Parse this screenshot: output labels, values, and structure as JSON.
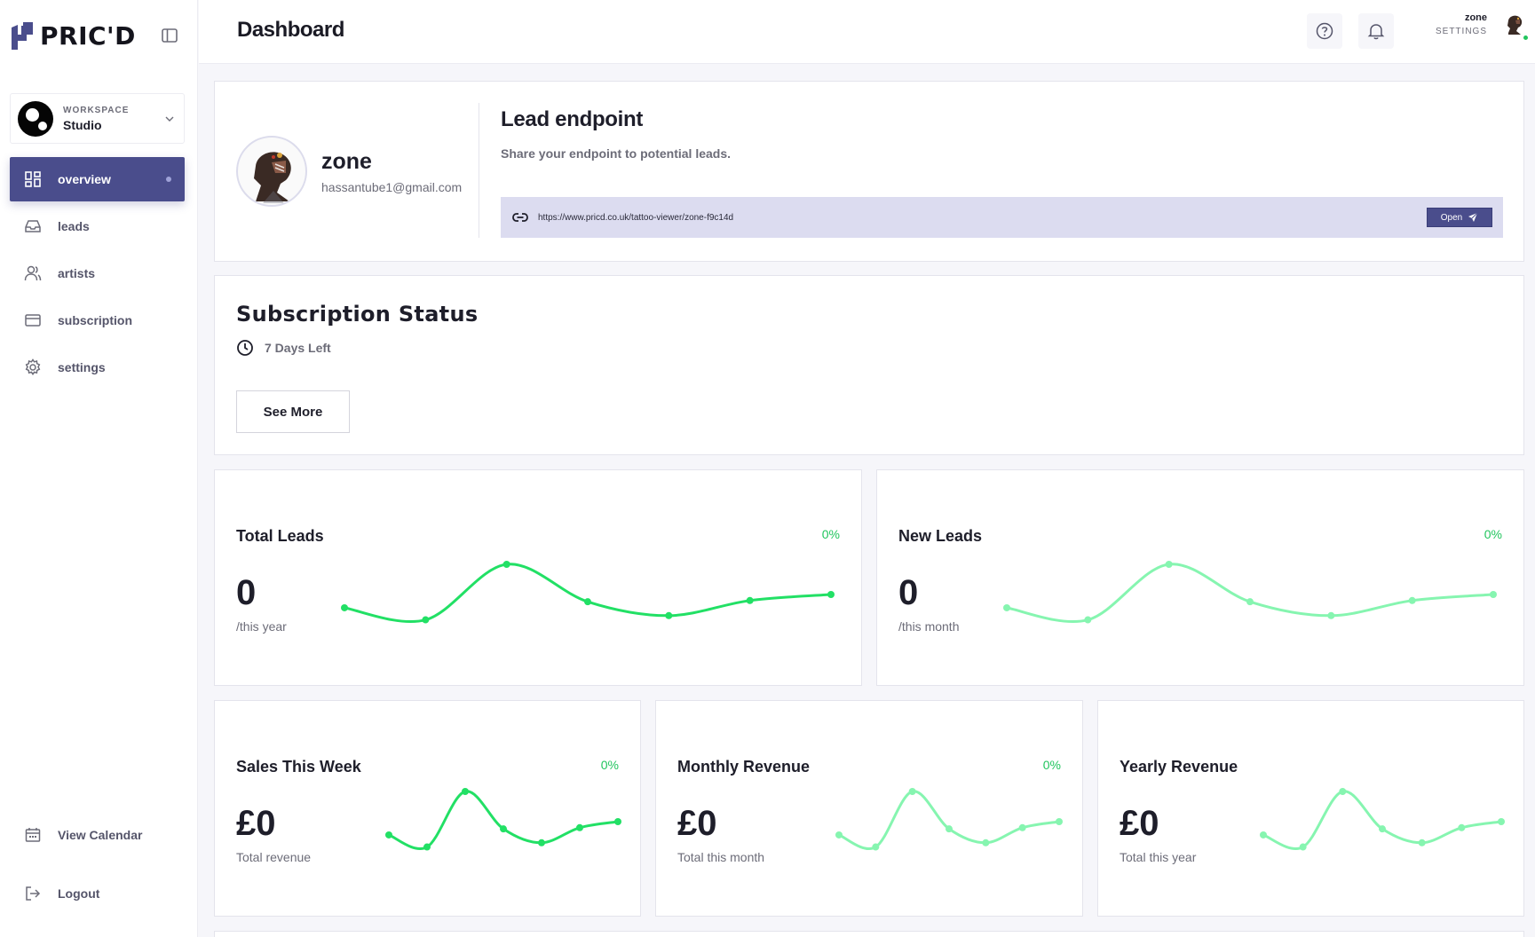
{
  "brand": {
    "name": "PRIC'D"
  },
  "workspace": {
    "label": "WORKSPACE",
    "name": "Studio"
  },
  "nav": [
    {
      "label": "overview",
      "icon": "grid-icon",
      "active": true
    },
    {
      "label": "leads",
      "icon": "inbox-icon",
      "active": false
    },
    {
      "label": "artists",
      "icon": "users-icon",
      "active": false
    },
    {
      "label": "subscription",
      "icon": "credit-card-icon",
      "active": false
    },
    {
      "label": "settings",
      "icon": "gear-icon",
      "active": false
    }
  ],
  "bottom_nav": {
    "calendar": "View Calendar",
    "logout": "Logout"
  },
  "header": {
    "title": "Dashboard",
    "user_name": "zone",
    "user_sub": "SETTINGS"
  },
  "profile": {
    "name": "zone",
    "email": "hassantube1@gmail.com"
  },
  "lead_endpoint": {
    "title": "Lead endpoint",
    "subtitle": "Share your endpoint to potential leads.",
    "url": "https://www.pricd.co.uk/tattoo-viewer/zone-f9c14d",
    "open_label": "Open"
  },
  "subscription": {
    "title": "Subscription Status",
    "days_left": "7 Days Left",
    "see_more": "See More"
  },
  "colors": {
    "accent": "#4a4d8c",
    "spark_dark": "#22e065",
    "spark_light": "#86f5b0",
    "pct": "#22c55e"
  },
  "stats": {
    "total_leads": {
      "title": "Total Leads",
      "value": "0",
      "caption": "/this year",
      "pct": "0%"
    },
    "new_leads": {
      "title": "New Leads",
      "value": "0",
      "caption": "/this month",
      "pct": "0%"
    },
    "sales_week": {
      "title": "Sales This Week",
      "value": "£0",
      "caption": "Total revenue",
      "pct": "0%"
    },
    "monthly_revenue": {
      "title": "Monthly Revenue",
      "value": "£0",
      "caption": "Total this month",
      "pct": "0%"
    },
    "yearly_revenue": {
      "title": "Yearly Revenue",
      "value": "£0",
      "caption": "Total this year",
      "pct": ""
    }
  },
  "sparkline": {
    "values": [
      0.28,
      0.08,
      1.0,
      0.38,
      0.15,
      0.4,
      0.5
    ]
  }
}
